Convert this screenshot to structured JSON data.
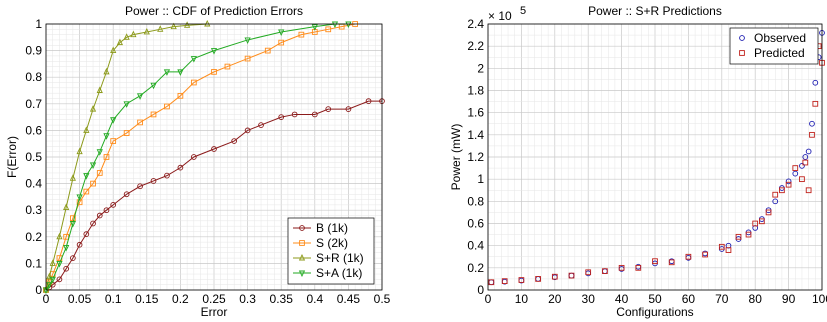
{
  "chart_data": [
    {
      "type": "line",
      "title": "Power :: CDF of Prediction Errors",
      "xlabel": "Error",
      "ylabel": "F(Error)",
      "xlim": [
        0,
        0.5
      ],
      "ylim": [
        0,
        1
      ],
      "xticks": [
        "0",
        "0.05",
        "0.1",
        "0.15",
        "0.2",
        "0.25",
        "0.3",
        "0.35",
        "0.4",
        "0.45",
        "0.5"
      ],
      "yticks": [
        "0",
        "0.1",
        "0.2",
        "0.3",
        "0.4",
        "0.5",
        "0.6",
        "0.7",
        "0.8",
        "0.9",
        "1"
      ],
      "grid": true,
      "legend_position": "bottom-right",
      "series": [
        {
          "name": "B (1k)",
          "color": "#8b1a1a",
          "marker": "circle",
          "x": [
            0,
            0.005,
            0.01,
            0.02,
            0.03,
            0.04,
            0.05,
            0.06,
            0.07,
            0.08,
            0.09,
            0.1,
            0.12,
            0.14,
            0.16,
            0.18,
            0.2,
            0.22,
            0.25,
            0.28,
            0.3,
            0.32,
            0.35,
            0.37,
            0.4,
            0.42,
            0.45,
            0.48,
            0.5
          ],
          "y": [
            0,
            0.01,
            0.02,
            0.04,
            0.08,
            0.12,
            0.17,
            0.21,
            0.25,
            0.28,
            0.3,
            0.32,
            0.36,
            0.39,
            0.41,
            0.43,
            0.46,
            0.5,
            0.53,
            0.56,
            0.6,
            0.62,
            0.65,
            0.66,
            0.66,
            0.68,
            0.68,
            0.71,
            0.71
          ]
        },
        {
          "name": "S (2k)",
          "color": "#ff8c1a",
          "marker": "square",
          "x": [
            0,
            0.005,
            0.01,
            0.02,
            0.03,
            0.04,
            0.05,
            0.06,
            0.07,
            0.08,
            0.09,
            0.1,
            0.12,
            0.14,
            0.16,
            0.18,
            0.2,
            0.22,
            0.25,
            0.27,
            0.3,
            0.33,
            0.35,
            0.38,
            0.4,
            0.42,
            0.44,
            0.46
          ],
          "y": [
            0,
            0.03,
            0.06,
            0.12,
            0.2,
            0.27,
            0.33,
            0.37,
            0.4,
            0.44,
            0.5,
            0.56,
            0.59,
            0.63,
            0.66,
            0.69,
            0.73,
            0.78,
            0.82,
            0.84,
            0.87,
            0.9,
            0.93,
            0.96,
            0.97,
            0.98,
            0.99,
            1.0
          ]
        },
        {
          "name": "S+R (1k)",
          "color": "#8c9a1a",
          "marker": "triangle-up",
          "x": [
            0,
            0.005,
            0.01,
            0.02,
            0.03,
            0.04,
            0.05,
            0.06,
            0.07,
            0.08,
            0.09,
            0.1,
            0.11,
            0.12,
            0.13,
            0.15,
            0.17,
            0.19,
            0.21,
            0.24
          ],
          "y": [
            0,
            0.05,
            0.1,
            0.2,
            0.31,
            0.42,
            0.52,
            0.6,
            0.68,
            0.75,
            0.82,
            0.9,
            0.93,
            0.95,
            0.96,
            0.97,
            0.98,
            0.99,
            0.995,
            1.0
          ]
        },
        {
          "name": "S+A (1k)",
          "color": "#22aa22",
          "marker": "triangle-down",
          "x": [
            0,
            0.005,
            0.01,
            0.02,
            0.03,
            0.04,
            0.05,
            0.06,
            0.07,
            0.08,
            0.09,
            0.1,
            0.12,
            0.14,
            0.16,
            0.18,
            0.2,
            0.22,
            0.25,
            0.3,
            0.35,
            0.4,
            0.43,
            0.45
          ],
          "y": [
            0,
            0.02,
            0.04,
            0.1,
            0.16,
            0.25,
            0.35,
            0.43,
            0.47,
            0.52,
            0.58,
            0.64,
            0.7,
            0.73,
            0.77,
            0.82,
            0.82,
            0.87,
            0.9,
            0.94,
            0.97,
            0.99,
            1.0,
            1.0
          ]
        }
      ]
    },
    {
      "type": "scatter",
      "title": "Power :: S+R Predictions",
      "xlabel": "Configurations",
      "ylabel": "Power (mW)",
      "y_multiplier": "× 10",
      "y_exponent": "5",
      "xlim": [
        0,
        100
      ],
      "ylim": [
        0,
        2.4
      ],
      "xticks": [
        "0",
        "10",
        "20",
        "30",
        "40",
        "50",
        "60",
        "70",
        "80",
        "90",
        "100"
      ],
      "yticks": [
        "0",
        "0.2",
        "0.4",
        "0.6",
        "0.8",
        "1",
        "1.2",
        "1.4",
        "1.6",
        "1.8",
        "2",
        "2.2",
        "2.4"
      ],
      "grid": true,
      "legend_position": "top-right",
      "series": [
        {
          "name": "Observed",
          "color": "#1a1ab0",
          "marker": "circle",
          "x": [
            1,
            5,
            10,
            15,
            20,
            25,
            30,
            35,
            40,
            45,
            50,
            55,
            60,
            65,
            70,
            72,
            75,
            78,
            80,
            82,
            84,
            86,
            88,
            90,
            92,
            94,
            95,
            96,
            97,
            98,
            99,
            100
          ],
          "y": [
            0.07,
            0.075,
            0.085,
            0.1,
            0.115,
            0.13,
            0.15,
            0.17,
            0.19,
            0.21,
            0.24,
            0.26,
            0.29,
            0.33,
            0.37,
            0.4,
            0.46,
            0.52,
            0.56,
            0.64,
            0.72,
            0.8,
            0.92,
            0.98,
            1.05,
            1.12,
            1.2,
            1.25,
            1.5,
            1.87,
            2.1,
            2.32
          ]
        },
        {
          "name": "Predicted",
          "color": "#c0201a",
          "marker": "square",
          "x": [
            1,
            5,
            10,
            15,
            20,
            25,
            30,
            35,
            40,
            45,
            50,
            55,
            60,
            65,
            70,
            72,
            75,
            78,
            80,
            82,
            84,
            86,
            88,
            90,
            92,
            94,
            95,
            96,
            97,
            98,
            99,
            100
          ],
          "y": [
            0.07,
            0.08,
            0.09,
            0.1,
            0.12,
            0.13,
            0.16,
            0.17,
            0.2,
            0.2,
            0.26,
            0.25,
            0.3,
            0.32,
            0.39,
            0.36,
            0.48,
            0.5,
            0.6,
            0.62,
            0.7,
            0.86,
            0.9,
            0.95,
            1.1,
            1.0,
            1.15,
            0.9,
            1.4,
            1.68,
            2.2,
            2.05
          ]
        }
      ]
    }
  ]
}
